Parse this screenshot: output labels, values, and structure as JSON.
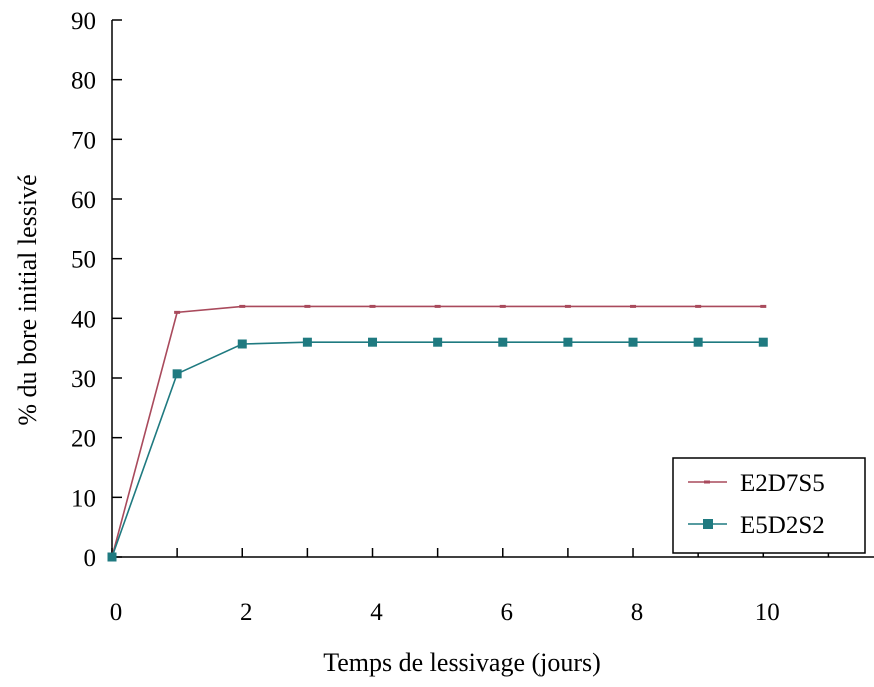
{
  "chart_data": {
    "type": "line",
    "title": "",
    "xlabel": "Temps de lessivage (jours)",
    "ylabel": "% du bore initial lessivé",
    "xlim": [
      0,
      11.7
    ],
    "ylim": [
      0,
      90
    ],
    "x_ticks": [
      0,
      2,
      4,
      6,
      8,
      10
    ],
    "y_ticks": [
      0,
      10,
      20,
      30,
      40,
      50,
      60,
      70,
      80,
      90
    ],
    "grid": false,
    "legend_position": "bottom-right",
    "x": [
      0,
      1,
      2,
      3,
      4,
      5,
      6,
      7,
      8,
      9,
      10
    ],
    "series": [
      {
        "name": "E2D7S5",
        "color": "#a94a5c",
        "marker": "dash",
        "values": [
          0,
          41,
          42,
          42,
          42,
          42,
          42,
          42,
          42,
          42,
          42
        ]
      },
      {
        "name": "E5D2S2",
        "color": "#1f7a80",
        "marker": "square",
        "values": [
          0,
          30.7,
          35.7,
          36,
          36,
          36,
          36,
          36,
          36,
          36,
          36
        ]
      }
    ]
  }
}
